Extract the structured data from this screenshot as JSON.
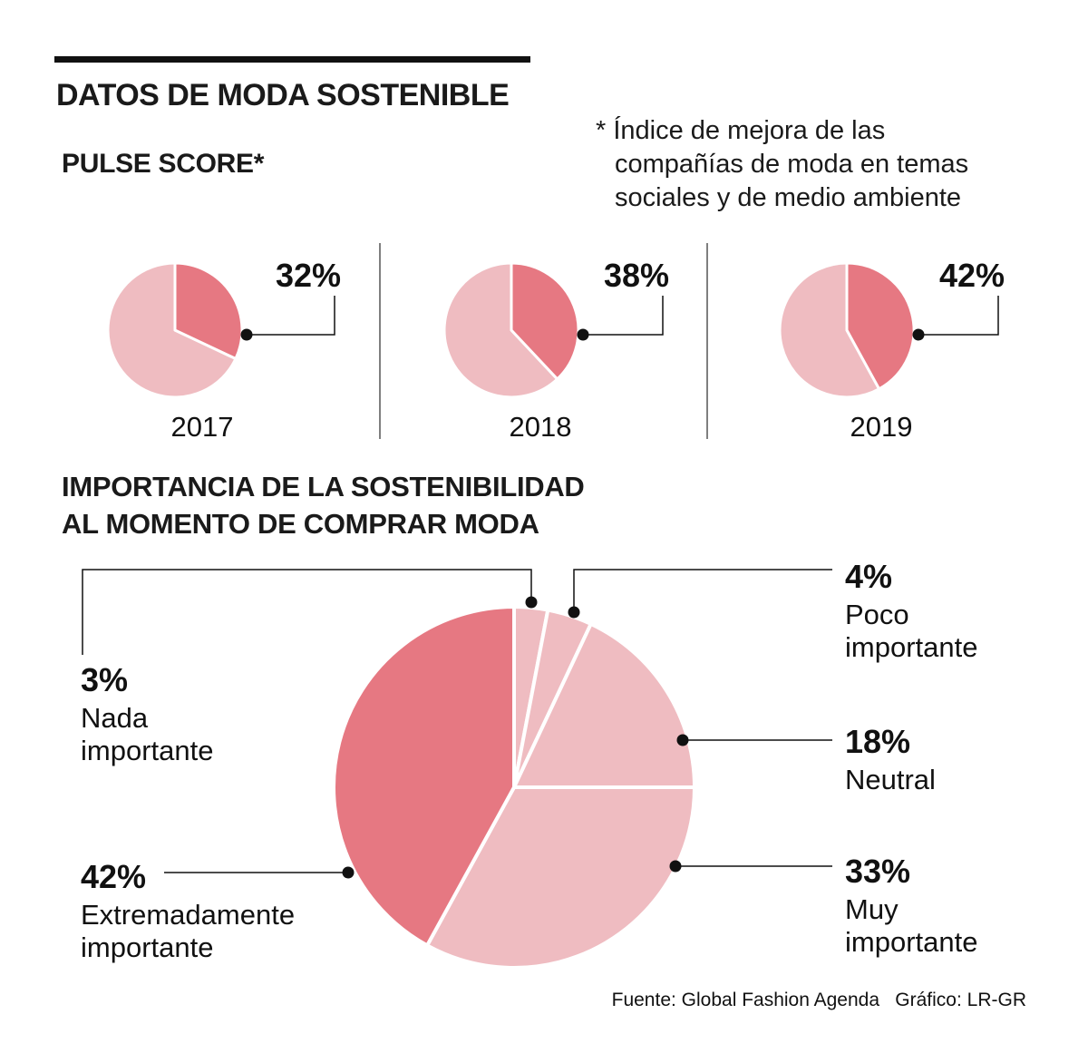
{
  "header": {
    "title": "DATOS DE MODA SOSTENIBLE",
    "subtitle": "PULSE SCORE*",
    "footnote_marker": "*",
    "footnote_lines": [
      "Índice de mejora de las",
      "compañías de moda en temas",
      "sociales y de medio ambiente"
    ]
  },
  "section2": {
    "title_lines": [
      "IMPORTANCIA DE LA SOSTENIBILIDAD",
      "AL MOMENTO DE COMPRAR MODA"
    ]
  },
  "source": {
    "fuente": "Fuente: Global Fashion Agenda",
    "grafico": "Gráfico: LR-GR"
  },
  "colors": {
    "accent": "#e67882",
    "light": "#efbcc1",
    "ink": "#111111",
    "separator": "#555555"
  },
  "chart_data": [
    {
      "type": "pie",
      "title": "PULSE SCORE*",
      "charts": [
        {
          "year": "2017",
          "value": 32,
          "label": "32%"
        },
        {
          "year": "2018",
          "value": 38,
          "label": "38%"
        },
        {
          "year": "2019",
          "value": 42,
          "label": "42%"
        }
      ]
    },
    {
      "type": "pie",
      "title": "IMPORTANCIA DE LA SOSTENIBILIDAD AL MOMENTO DE COMPRAR MODA",
      "slices": [
        {
          "name_lines": [
            "Nada",
            "importante"
          ],
          "value": 3,
          "label": "3%"
        },
        {
          "name_lines": [
            "Poco",
            "importante"
          ],
          "value": 4,
          "label": "4%"
        },
        {
          "name_lines": [
            "Neutral"
          ],
          "value": 18,
          "label": "18%"
        },
        {
          "name_lines": [
            "Muy",
            "importante"
          ],
          "value": 33,
          "label": "33%"
        },
        {
          "name_lines": [
            "Extremadamente",
            "importante"
          ],
          "value": 42,
          "label": "42%"
        }
      ]
    }
  ]
}
